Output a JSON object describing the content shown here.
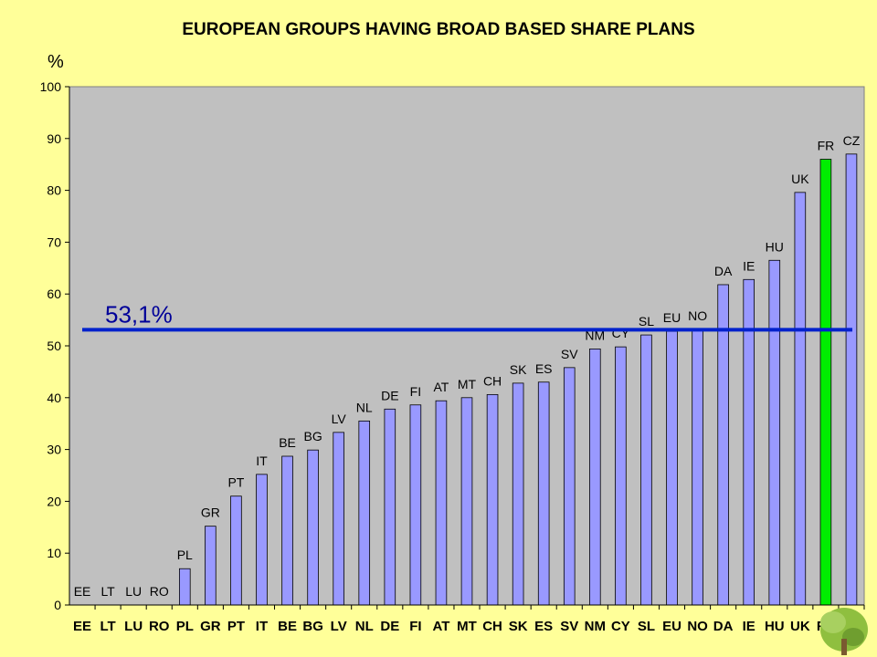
{
  "chart_data": {
    "type": "bar",
    "title": "EUROPEAN GROUPS HAVING BROAD BASED SHARE PLANS",
    "ylabel": "%",
    "xlabel": "",
    "ylim": [
      0,
      100
    ],
    "yticks": [
      0,
      10,
      20,
      30,
      40,
      50,
      60,
      70,
      80,
      90,
      100
    ],
    "grid": false,
    "categories": [
      "EE",
      "LT",
      "LU",
      "RO",
      "PL",
      "GR",
      "PT",
      "IT",
      "BE",
      "BG",
      "LV",
      "NL",
      "DE",
      "FI",
      "AT",
      "MT",
      "CH",
      "SK",
      "ES",
      "SV",
      "NM",
      "CY",
      "SL",
      "EU",
      "NO",
      "DA",
      "IE",
      "HU",
      "UK",
      "FR",
      "CZ"
    ],
    "values": [
      0,
      0,
      0,
      0,
      7,
      15.2,
      21,
      25.2,
      28.7,
      29.9,
      33.3,
      35.5,
      37.8,
      38.6,
      39.4,
      40,
      40.6,
      42.8,
      43,
      45.8,
      49.4,
      49.8,
      52.1,
      52.8,
      53.2,
      61.8,
      62.8,
      66.5,
      79.6,
      86,
      87
    ],
    "bar_color": "#9999ff",
    "highlight": {
      "category": "FR",
      "color": "#00ee00"
    },
    "reference_line": {
      "value": 53.1,
      "label": "53,1%",
      "color": "#0022cc"
    },
    "plot_background": "#c0c0c0",
    "page_background": "#ffff99"
  }
}
